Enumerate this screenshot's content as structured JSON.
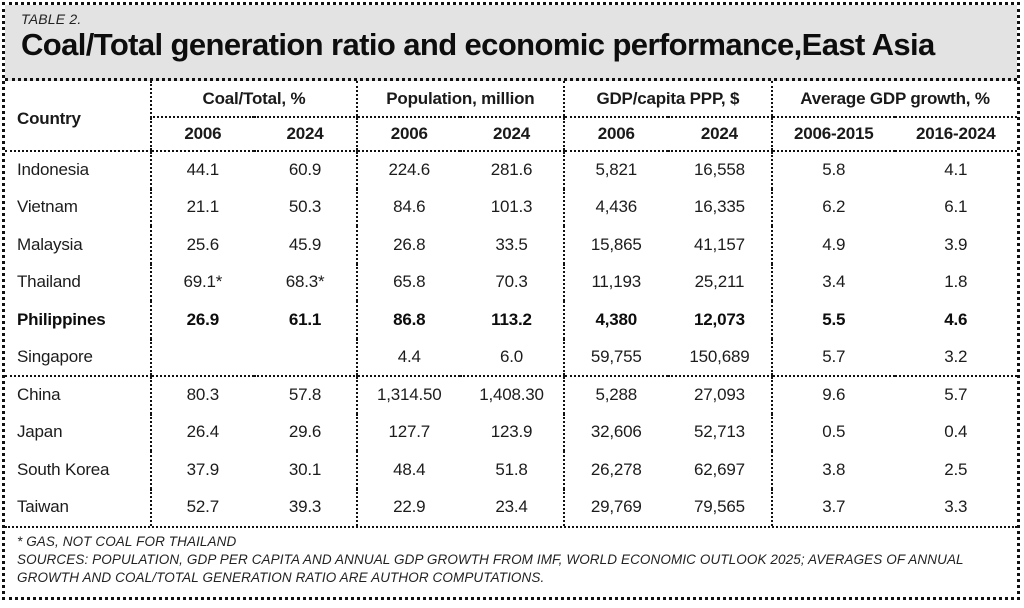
{
  "chart_data": {
    "type": "table",
    "table_label": "TABLE 2.",
    "title": "Coal/Total generation ratio and economic performance,East Asia",
    "columns": {
      "country": "Country",
      "groups": [
        {
          "label": "Coal/Total, %",
          "sub": [
            "2006",
            "2024"
          ]
        },
        {
          "label": "Population, million",
          "sub": [
            "2006",
            "2024"
          ]
        },
        {
          "label": "GDP/capita PPP, $",
          "sub": [
            "2006",
            "2024"
          ]
        },
        {
          "label": "Average GDP growth, %",
          "sub": [
            "2006-2015",
            "2016-2024"
          ]
        }
      ]
    },
    "rows": [
      {
        "country": "Indonesia",
        "values": [
          "44.1",
          "60.9",
          "224.6",
          "281.6",
          "5,821",
          "16,558",
          "5.8",
          "4.1"
        ],
        "bold": false,
        "group_end": false
      },
      {
        "country": "Vietnam",
        "values": [
          "21.1",
          "50.3",
          "84.6",
          "101.3",
          "4,436",
          "16,335",
          "6.2",
          "6.1"
        ],
        "bold": false,
        "group_end": false
      },
      {
        "country": "Malaysia",
        "values": [
          "25.6",
          "45.9",
          "26.8",
          "33.5",
          "15,865",
          "41,157",
          "4.9",
          "3.9"
        ],
        "bold": false,
        "group_end": false
      },
      {
        "country": "Thailand",
        "values": [
          "69.1*",
          "68.3*",
          "65.8",
          "70.3",
          "11,193",
          "25,211",
          "3.4",
          "1.8"
        ],
        "bold": false,
        "group_end": false
      },
      {
        "country": "Philippines",
        "values": [
          "26.9",
          "61.1",
          "86.8",
          "113.2",
          "4,380",
          "12,073",
          "5.5",
          "4.6"
        ],
        "bold": true,
        "group_end": false
      },
      {
        "country": "Singapore",
        "values": [
          "",
          "",
          "4.4",
          "6.0",
          "59,755",
          "150,689",
          "5.7",
          "3.2"
        ],
        "bold": false,
        "group_end": true
      },
      {
        "country": "China",
        "values": [
          "80.3",
          "57.8",
          "1,314.50",
          "1,408.30",
          "5,288",
          "27,093",
          "9.6",
          "5.7"
        ],
        "bold": false,
        "group_end": false
      },
      {
        "country": "Japan",
        "values": [
          "26.4",
          "29.6",
          "127.7",
          "123.9",
          "32,606",
          "52,713",
          "0.5",
          "0.4"
        ],
        "bold": false,
        "group_end": false
      },
      {
        "country": "South Korea",
        "values": [
          "37.9",
          "30.1",
          "48.4",
          "51.8",
          "26,278",
          "62,697",
          "3.8",
          "2.5"
        ],
        "bold": false,
        "group_end": false
      },
      {
        "country": "Taiwan",
        "values": [
          "52.7",
          "39.3",
          "22.9",
          "23.4",
          "29,769",
          "79,565",
          "3.7",
          "3.3"
        ],
        "bold": false,
        "group_end": false
      }
    ],
    "footnotes": [
      "* GAS, NOT COAL FOR THAILAND",
      "SOURCES: POPULATION, GDP PER CAPITA AND ANNUAL GDP GROWTH FROM IMF, WORLD ECONOMIC OUTLOOK 2025; AVERAGES OF ANNUAL GROWTH AND COAL/TOTAL GENERATION RATIO ARE AUTHOR COMPUTATIONS."
    ],
    "colors": {
      "header_bg": "#e3e3e3",
      "border": "#111111",
      "text": "#1a1a1a"
    }
  }
}
